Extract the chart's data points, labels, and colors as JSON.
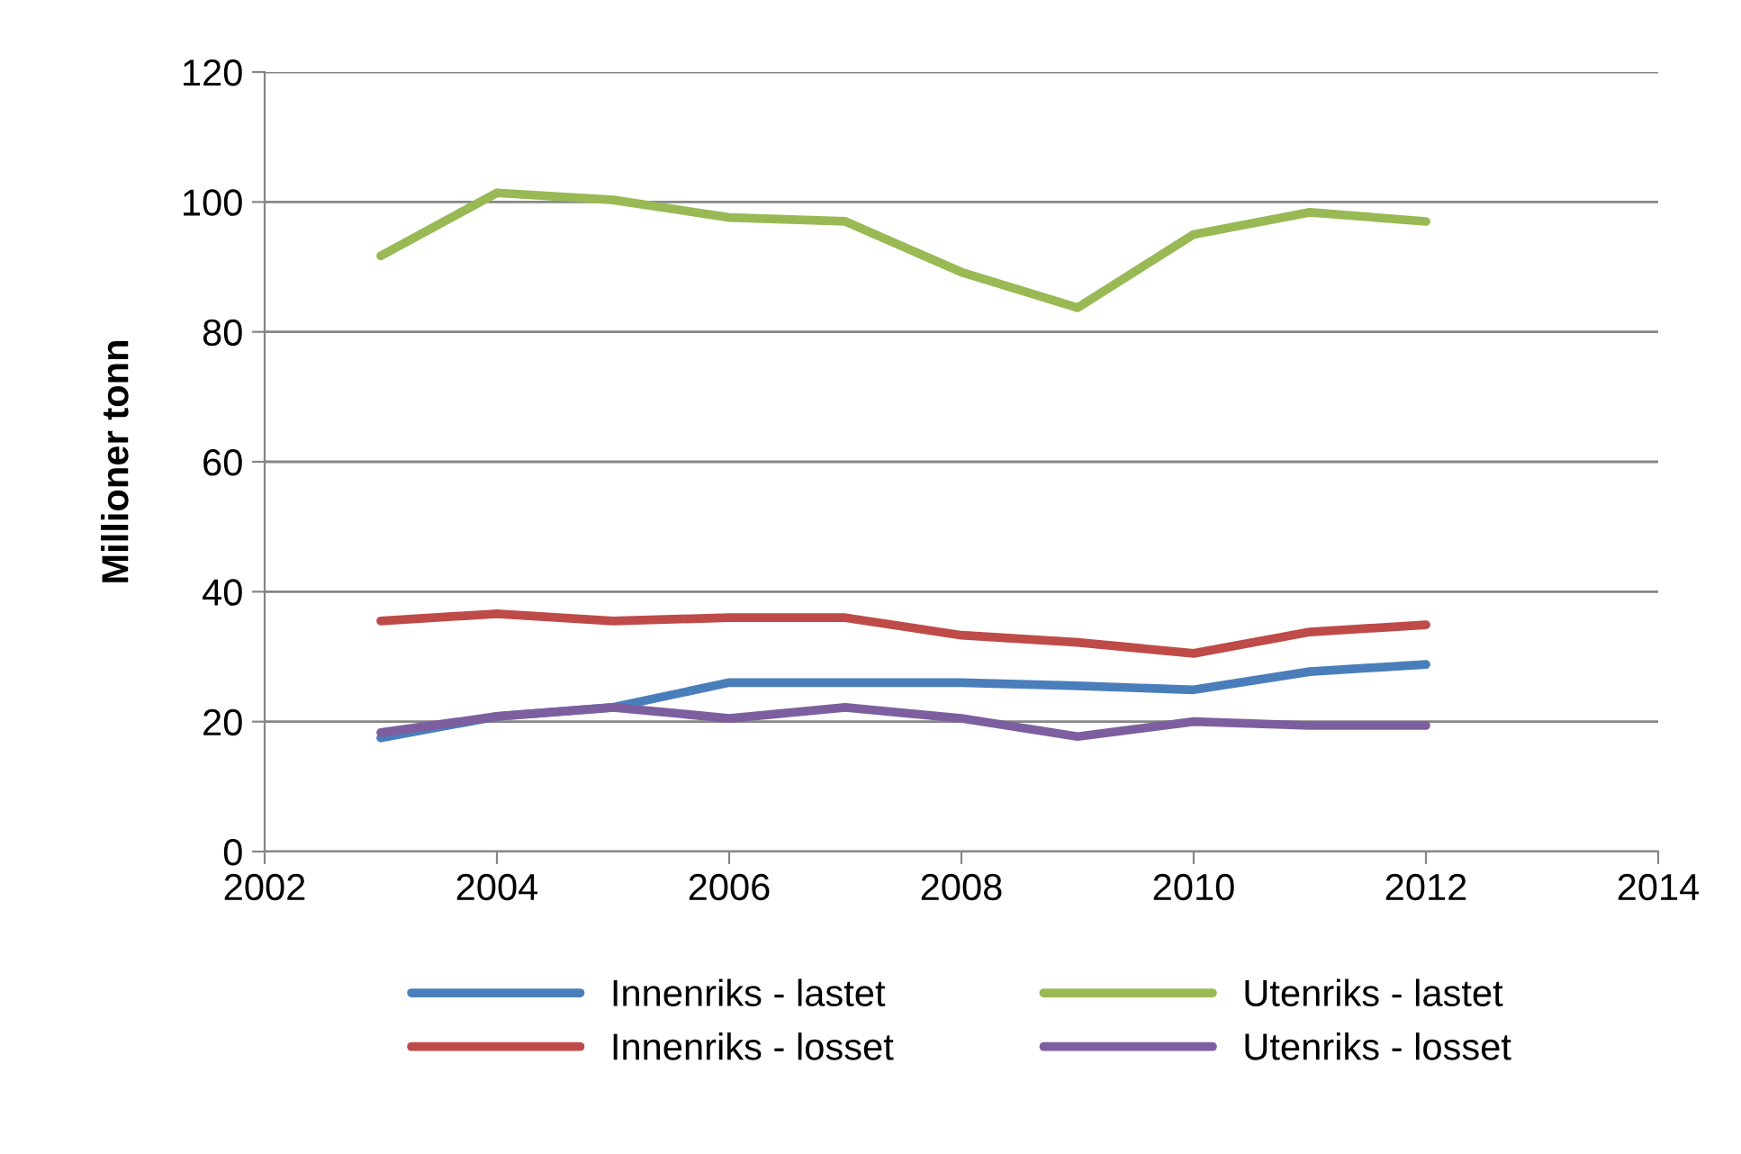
{
  "chart_data": {
    "type": "line",
    "ylabel": "Millioner tonn",
    "x": [
      2003,
      2004,
      2005,
      2006,
      2007,
      2008,
      2009,
      2010,
      2011,
      2012
    ],
    "series": [
      {
        "name": "Innenriks - lastet",
        "color": "#4a7ebb",
        "values": [
          17.5,
          20.8,
          22.2,
          26,
          26,
          26,
          25.5,
          24.9,
          27.7,
          28.8
        ]
      },
      {
        "name": "Innenriks - losset",
        "color": "#be4b48",
        "values": [
          35.5,
          36.6,
          35.5,
          36,
          36,
          33.3,
          32.2,
          30.5,
          33.8,
          34.9
        ]
      },
      {
        "name": "Utenriks - lastet",
        "color": "#98b954",
        "values": [
          91.7,
          101.4,
          100.3,
          97.6,
          97,
          89.2,
          83.7,
          95,
          98.4,
          97
        ]
      },
      {
        "name": "Utenriks - losset",
        "color": "#7d5fa0",
        "values": [
          18.3,
          20.8,
          22.2,
          20.5,
          22.2,
          20.5,
          17.7,
          20,
          19.4,
          19.4
        ]
      }
    ],
    "xlim": [
      2002,
      2014
    ],
    "xticks": [
      2002,
      2004,
      2006,
      2008,
      2010,
      2012,
      2014
    ],
    "ylim": [
      0,
      120
    ],
    "yticks": [
      0,
      20,
      40,
      60,
      80,
      100,
      120
    ],
    "grid": "y",
    "legend": "bottom",
    "marker": "none",
    "line_style": "solid"
  }
}
